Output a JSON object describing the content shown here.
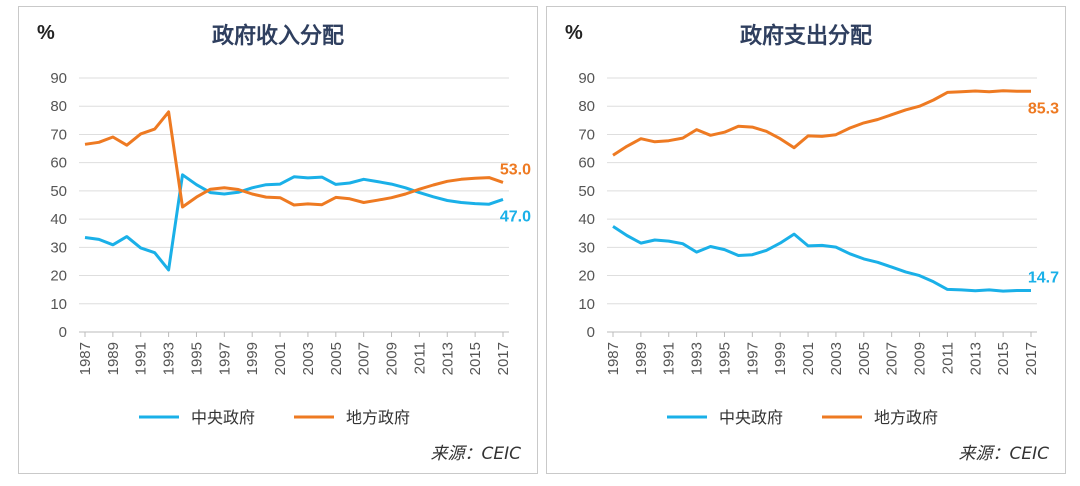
{
  "colors": {
    "central": "#1ab0e8",
    "local": "#ee7a22"
  },
  "chart_data": [
    {
      "type": "line",
      "title": "政府收入分配",
      "unit": "%",
      "ylim": [
        0,
        90
      ],
      "yticks": [
        0,
        10,
        20,
        30,
        40,
        50,
        60,
        70,
        80,
        90
      ],
      "x": [
        1987,
        1988,
        1989,
        1990,
        1991,
        1992,
        1993,
        1994,
        1995,
        1996,
        1997,
        1998,
        1999,
        2000,
        2001,
        2002,
        2003,
        2004,
        2005,
        2006,
        2007,
        2008,
        2009,
        2010,
        2011,
        2012,
        2013,
        2014,
        2015,
        2016,
        2017
      ],
      "xticks": [
        "1987",
        "1989",
        "1991",
        "1993",
        "1995",
        "1997",
        "1999",
        "2001",
        "2003",
        "2005",
        "2007",
        "2009",
        "2011",
        "2013",
        "2015",
        "2017"
      ],
      "series": [
        {
          "name": "中央政府",
          "color": "central",
          "end_label": "47.0",
          "values": [
            33.5,
            32.8,
            30.9,
            33.8,
            29.8,
            28.1,
            22.0,
            55.7,
            52.2,
            49.4,
            48.9,
            49.5,
            51.1,
            52.2,
            52.4,
            55.0,
            54.6,
            54.9,
            52.3,
            52.8,
            54.1,
            53.3,
            52.4,
            51.1,
            49.4,
            47.9,
            46.6,
            45.9,
            45.5,
            45.3,
            47.0
          ]
        },
        {
          "name": "地方政府",
          "color": "local",
          "end_label": "53.0",
          "values": [
            66.5,
            67.2,
            69.1,
            66.2,
            70.2,
            71.9,
            78.0,
            44.3,
            47.8,
            50.6,
            51.1,
            50.5,
            48.9,
            47.8,
            47.6,
            45.0,
            45.4,
            45.1,
            47.7,
            47.2,
            45.9,
            46.7,
            47.6,
            48.9,
            50.6,
            52.1,
            53.4,
            54.1,
            54.5,
            54.7,
            53.0
          ]
        }
      ],
      "legend": [
        "中央政府",
        "地方政府"
      ],
      "source": "来源：CEIC"
    },
    {
      "type": "line",
      "title": "政府支出分配",
      "unit": "%",
      "ylim": [
        0,
        90
      ],
      "yticks": [
        0,
        10,
        20,
        30,
        40,
        50,
        60,
        70,
        80,
        90
      ],
      "x": [
        1987,
        1988,
        1989,
        1990,
        1991,
        1992,
        1993,
        1994,
        1995,
        1996,
        1997,
        1998,
        1999,
        2000,
        2001,
        2002,
        2003,
        2004,
        2005,
        2006,
        2007,
        2008,
        2009,
        2010,
        2011,
        2012,
        2013,
        2014,
        2015,
        2016,
        2017
      ],
      "xticks": [
        "1987",
        "1989",
        "1991",
        "1993",
        "1995",
        "1997",
        "1999",
        "2001",
        "2003",
        "2005",
        "2007",
        "2009",
        "2011",
        "2013",
        "2015",
        "2017"
      ],
      "series": [
        {
          "name": "中央政府",
          "color": "central",
          "end_label": "14.7",
          "values": [
            37.4,
            34.2,
            31.5,
            32.6,
            32.2,
            31.3,
            28.3,
            30.3,
            29.2,
            27.1,
            27.4,
            28.9,
            31.5,
            34.7,
            30.5,
            30.7,
            30.1,
            27.7,
            25.9,
            24.7,
            23.0,
            21.3,
            20.0,
            17.8,
            15.1,
            14.9,
            14.6,
            14.9,
            14.5,
            14.7,
            14.7
          ]
        },
        {
          "name": "地方政府",
          "color": "local",
          "end_label": "85.3",
          "values": [
            62.6,
            65.8,
            68.5,
            67.4,
            67.8,
            68.7,
            71.7,
            69.7,
            70.8,
            72.9,
            72.6,
            71.1,
            68.5,
            65.3,
            69.5,
            69.3,
            69.9,
            72.3,
            74.1,
            75.3,
            77.0,
            78.7,
            80.0,
            82.2,
            84.9,
            85.1,
            85.4,
            85.1,
            85.5,
            85.3,
            85.3
          ]
        }
      ],
      "legend": [
        "中央政府",
        "地方政府"
      ],
      "source": "来源：CEIC"
    }
  ]
}
